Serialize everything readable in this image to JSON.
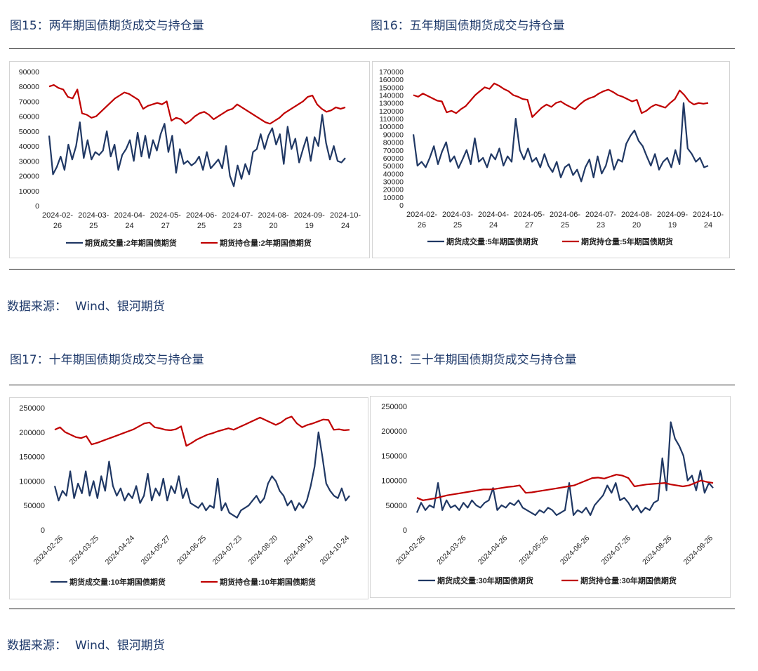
{
  "section1": {
    "titles": [
      "图15：两年期国债期货成交与持仓量",
      "图16：五年期国债期货成交与持仓量"
    ],
    "source_label": "数据来源：",
    "source_value": "Wind、银河期货"
  },
  "section2": {
    "titles": [
      "图17：十年期国债期货成交与持仓量",
      "图18：三十年期国债期货成交与持仓量"
    ],
    "source_label": "数据来源：",
    "source_value": "Wind、银河期货"
  },
  "chart_data": [
    {
      "type": "line",
      "title": "图15：两年期国债期货成交与持仓量",
      "ylim": [
        0,
        90000
      ],
      "yticks": [
        0,
        10000,
        20000,
        30000,
        40000,
        50000,
        60000,
        70000,
        80000,
        90000
      ],
      "xticks": [
        [
          "2024-02-",
          "26"
        ],
        [
          "2024-03-",
          "25"
        ],
        [
          "2024-04-",
          "24"
        ],
        [
          "2024-05-",
          "27"
        ],
        [
          "2024-06-",
          "25"
        ],
        [
          "2024-07-",
          "23"
        ],
        [
          "2024-08-",
          "20"
        ],
        [
          "2024-09-",
          "19"
        ],
        [
          "2024-10-",
          "24"
        ]
      ],
      "x_label_style": "wrap",
      "legend_position": "bottom",
      "grid": false,
      "series": [
        {
          "name": "期货成交量:2年期国债期货",
          "color": "#203864",
          "values": [
            47000,
            21000,
            26000,
            33000,
            24000,
            41000,
            31000,
            40000,
            56000,
            32000,
            44000,
            31000,
            36000,
            34000,
            37000,
            50000,
            33000,
            41000,
            24000,
            34000,
            38000,
            44000,
            30000,
            49000,
            33000,
            47000,
            32000,
            44000,
            37000,
            48000,
            55000,
            36000,
            47000,
            22000,
            38000,
            28000,
            30000,
            27000,
            29000,
            33000,
            24000,
            36000,
            25000,
            28000,
            31000,
            25000,
            40000,
            20000,
            13000,
            27000,
            18000,
            28000,
            21000,
            36000,
            38000,
            48000,
            38000,
            47000,
            52000,
            41000,
            48000,
            28000,
            53000,
            38000,
            45000,
            29000,
            38000,
            46000,
            30000,
            46000,
            40000,
            61000,
            42000,
            31000,
            40000,
            30000,
            29000,
            32000
          ]
        },
        {
          "name": "期货持仓量:2年期国债期货",
          "color": "#c00000",
          "values": [
            80000,
            81000,
            79000,
            78000,
            73000,
            72000,
            78000,
            62000,
            61000,
            59000,
            60000,
            63000,
            66000,
            69000,
            72000,
            74000,
            76000,
            75000,
            73000,
            71000,
            65000,
            67000,
            68000,
            69000,
            68000,
            70000,
            57000,
            59000,
            58000,
            55000,
            57000,
            60000,
            62000,
            63000,
            61000,
            58000,
            60000,
            62000,
            64000,
            65000,
            68000,
            66000,
            64000,
            62000,
            60000,
            58000,
            56000,
            55000,
            57000,
            59000,
            62000,
            64000,
            66000,
            68000,
            70000,
            73000,
            74000,
            68000,
            65000,
            63000,
            64000,
            66000,
            65000,
            66000
          ]
        }
      ]
    },
    {
      "type": "line",
      "title": "图16：五年期国债期货成交与持仓量",
      "ylim": [
        0,
        170000
      ],
      "yticks": [
        0,
        10000,
        20000,
        30000,
        40000,
        50000,
        60000,
        70000,
        80000,
        90000,
        100000,
        110000,
        120000,
        130000,
        140000,
        150000,
        160000,
        170000
      ],
      "xticks": [
        [
          "2024-02-",
          "26"
        ],
        [
          "2024-03-",
          "25"
        ],
        [
          "2024-04-",
          "24"
        ],
        [
          "2024-05-",
          "27"
        ],
        [
          "2024-06-",
          "25"
        ],
        [
          "2024-07-",
          "23"
        ],
        [
          "2024-08-",
          "20"
        ],
        [
          "2024-09-",
          "19"
        ],
        [
          "2024-10-",
          "24"
        ]
      ],
      "x_label_style": "wrap",
      "legend_position": "bottom",
      "grid": false,
      "series": [
        {
          "name": "期货成交量:5年期国债期货",
          "color": "#203864",
          "values": [
            90000,
            50000,
            55000,
            48000,
            60000,
            75000,
            52000,
            68000,
            80000,
            55000,
            62000,
            47000,
            58000,
            70000,
            52000,
            85000,
            55000,
            60000,
            48000,
            65000,
            58000,
            72000,
            50000,
            62000,
            55000,
            110000,
            70000,
            58000,
            72000,
            55000,
            60000,
            48000,
            65000,
            50000,
            42000,
            55000,
            35000,
            48000,
            52000,
            38000,
            45000,
            30000,
            48000,
            58000,
            35000,
            62000,
            40000,
            50000,
            70000,
            45000,
            58000,
            55000,
            78000,
            88000,
            95000,
            82000,
            75000,
            62000,
            50000,
            65000,
            45000,
            55000,
            60000,
            48000,
            70000,
            52000,
            130000,
            72000,
            65000,
            55000,
            60000,
            48000,
            50000
          ]
        },
        {
          "name": "期货持仓量:5年期国债期货",
          "color": "#c00000",
          "values": [
            140000,
            138000,
            142000,
            139000,
            136000,
            133000,
            132000,
            118000,
            120000,
            117000,
            122000,
            126000,
            133000,
            140000,
            145000,
            150000,
            148000,
            155000,
            152000,
            148000,
            145000,
            140000,
            138000,
            135000,
            134000,
            112000,
            118000,
            124000,
            128000,
            125000,
            130000,
            132000,
            128000,
            125000,
            122000,
            128000,
            133000,
            136000,
            138000,
            142000,
            145000,
            147000,
            144000,
            140000,
            138000,
            135000,
            132000,
            134000,
            117000,
            120000,
            125000,
            128000,
            126000,
            124000,
            130000,
            135000,
            146000,
            140000,
            132000,
            128000,
            130000,
            129000,
            130000
          ]
        }
      ]
    },
    {
      "type": "line",
      "title": "图17：十年期国债期货成交与持仓量",
      "ylim": [
        0,
        250000
      ],
      "yticks": [
        0,
        50000,
        100000,
        150000,
        200000,
        250000
      ],
      "xticks": [
        "2024-02-26",
        "2024-03-25",
        "2024-04-24",
        "2024-05-27",
        "2024-06-25",
        "2024-07-23",
        "2024-08-20",
        "2024-09-19",
        "2024-10-24"
      ],
      "x_label_style": "rotated",
      "legend_position": "bottom",
      "grid": false,
      "series": [
        {
          "name": "期货成交量:10年期国债期货",
          "color": "#203864",
          "values": [
            90000,
            60000,
            80000,
            70000,
            120000,
            65000,
            95000,
            75000,
            120000,
            70000,
            100000,
            65000,
            110000,
            80000,
            140000,
            90000,
            70000,
            85000,
            60000,
            75000,
            65000,
            90000,
            55000,
            70000,
            115000,
            60000,
            85000,
            70000,
            105000,
            60000,
            90000,
            75000,
            110000,
            65000,
            85000,
            55000,
            50000,
            45000,
            55000,
            40000,
            50000,
            45000,
            105000,
            40000,
            55000,
            35000,
            30000,
            25000,
            40000,
            45000,
            50000,
            60000,
            70000,
            55000,
            65000,
            95000,
            110000,
            100000,
            80000,
            70000,
            50000,
            60000,
            40000,
            55000,
            45000,
            60000,
            90000,
            130000,
            200000,
            150000,
            95000,
            80000,
            70000,
            65000,
            85000,
            60000,
            70000
          ]
        },
        {
          "name": "期货持仓量:10年期国债期货",
          "color": "#c00000",
          "values": [
            205000,
            210000,
            200000,
            195000,
            190000,
            188000,
            192000,
            175000,
            178000,
            182000,
            186000,
            190000,
            194000,
            198000,
            202000,
            206000,
            212000,
            218000,
            220000,
            210000,
            208000,
            205000,
            204000,
            206000,
            212000,
            172000,
            178000,
            185000,
            190000,
            195000,
            198000,
            202000,
            205000,
            208000,
            205000,
            210000,
            215000,
            220000,
            225000,
            230000,
            225000,
            220000,
            215000,
            220000,
            228000,
            232000,
            218000,
            210000,
            215000,
            218000,
            222000,
            226000,
            225000,
            205000,
            206000,
            204000,
            205000
          ]
        }
      ]
    },
    {
      "type": "line",
      "title": "图18：三十年期国债期货成交与持仓量",
      "ylim": [
        0,
        250000
      ],
      "yticks": [
        0,
        50000,
        100000,
        150000,
        200000,
        250000
      ],
      "xticks": [
        "2024-02-26",
        "2024-03-26",
        "2024-04-26",
        "2024-05-26",
        "2024-06-26",
        "2024-07-26",
        "2024-08-26",
        "2024-09-26"
      ],
      "x_label_style": "rotated",
      "legend_position": "bottom",
      "grid": false,
      "series": [
        {
          "name": "期货成交量:30年期国债期货",
          "color": "#203864",
          "values": [
            35000,
            55000,
            40000,
            50000,
            45000,
            95000,
            40000,
            60000,
            45000,
            50000,
            40000,
            55000,
            45000,
            60000,
            50000,
            45000,
            55000,
            60000,
            85000,
            40000,
            50000,
            45000,
            55000,
            50000,
            60000,
            45000,
            40000,
            35000,
            30000,
            40000,
            35000,
            45000,
            40000,
            30000,
            35000,
            40000,
            95000,
            30000,
            40000,
            35000,
            45000,
            30000,
            50000,
            60000,
            70000,
            90000,
            75000,
            95000,
            60000,
            65000,
            55000,
            40000,
            50000,
            35000,
            45000,
            40000,
            55000,
            60000,
            145000,
            80000,
            218000,
            185000,
            170000,
            150000,
            100000,
            110000,
            80000,
            120000,
            75000,
            95000,
            85000
          ]
        },
        {
          "name": "期货持仓量:30年期国债期货",
          "color": "#c00000",
          "values": [
            65000,
            60000,
            62000,
            64000,
            67000,
            70000,
            72000,
            74000,
            76000,
            78000,
            80000,
            82000,
            82000,
            83000,
            85000,
            87000,
            88000,
            90000,
            75000,
            76000,
            78000,
            80000,
            82000,
            84000,
            86000,
            88000,
            90000,
            95000,
            100000,
            105000,
            106000,
            104000,
            108000,
            112000,
            110000,
            105000,
            88000,
            90000,
            92000,
            93000,
            94000,
            95000,
            92000,
            90000,
            88000,
            90000,
            95000,
            100000,
            97000,
            95000
          ]
        }
      ]
    }
  ]
}
